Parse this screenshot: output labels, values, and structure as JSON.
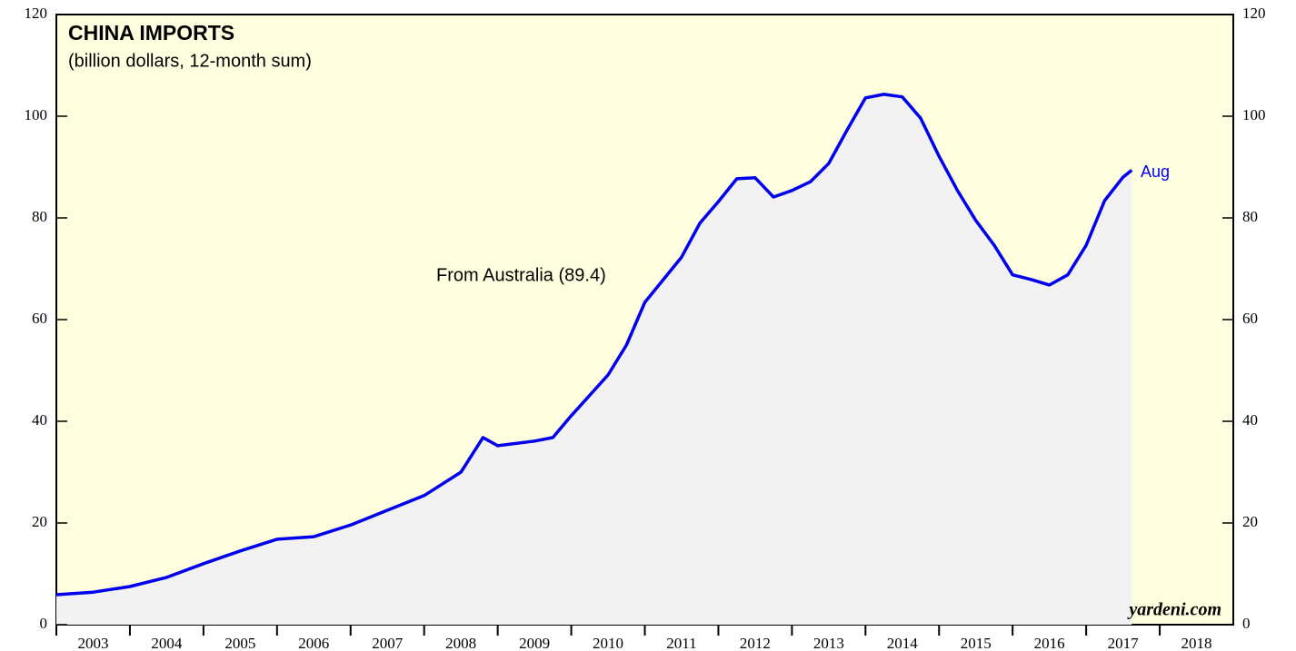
{
  "chart_data": {
    "type": "area",
    "title": "CHINA IMPORTS",
    "subtitle": "(billion dollars, 12-month sum)",
    "annotation": "From Australia (89.4)",
    "end_label": "Aug",
    "source": "yardeni.com",
    "xlim": [
      2003,
      2019
    ],
    "xticks": [
      2003,
      2004,
      2005,
      2006,
      2007,
      2008,
      2009,
      2010,
      2011,
      2012,
      2013,
      2014,
      2015,
      2016,
      2017,
      2018
    ],
    "ylim": [
      0,
      120
    ],
    "yticks": [
      0,
      20,
      40,
      60,
      80,
      100,
      120
    ],
    "series": [
      {
        "name": "From Australia",
        "color": "#0000ee",
        "fill": "#f2f2f2",
        "x": [
          2003.0,
          2003.5,
          2004.0,
          2004.5,
          2005.0,
          2005.5,
          2006.0,
          2006.5,
          2007.0,
          2007.5,
          2008.0,
          2008.5,
          2008.8,
          2009.0,
          2009.5,
          2009.75,
          2010.0,
          2010.5,
          2010.75,
          2011.0,
          2011.5,
          2011.75,
          2012.0,
          2012.25,
          2012.5,
          2012.75,
          2013.0,
          2013.25,
          2013.5,
          2013.75,
          2014.0,
          2014.25,
          2014.5,
          2014.75,
          2015.0,
          2015.25,
          2015.5,
          2015.75,
          2016.0,
          2016.25,
          2016.5,
          2016.75,
          2017.0,
          2017.25,
          2017.5,
          2017.62
        ],
        "values": [
          5.9,
          6.4,
          7.5,
          9.3,
          12.0,
          14.5,
          16.8,
          17.3,
          19.6,
          22.5,
          25.4,
          30.0,
          36.8,
          35.2,
          36.1,
          36.8,
          41.1,
          49.1,
          55.0,
          63.4,
          72.3,
          79.0,
          83.2,
          87.7,
          87.9,
          84.1,
          85.4,
          87.1,
          90.7,
          97.3,
          103.6,
          104.3,
          103.8,
          99.6,
          92.1,
          85.4,
          79.5,
          74.6,
          68.8,
          67.9,
          66.8,
          68.8,
          74.6,
          83.4,
          88.0,
          89.4
        ]
      }
    ]
  }
}
